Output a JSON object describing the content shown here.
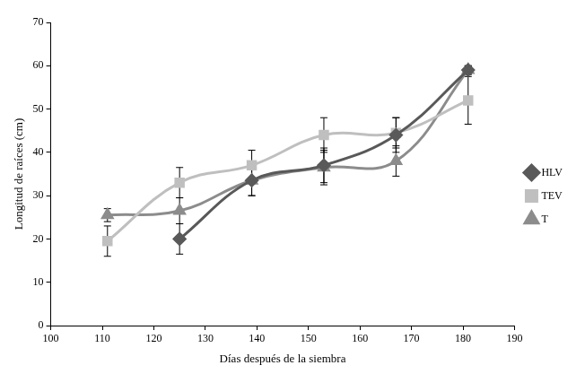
{
  "chart_data": {
    "type": "line",
    "x_label": "Días después de la siembra",
    "y_label": "Longitud de raíces (cm)",
    "x": [
      111,
      125,
      139,
      153,
      167,
      181
    ],
    "series": [
      {
        "name": "HLV",
        "color": "#595959",
        "marker": "diamond",
        "line_style": "solid",
        "values": [
          null,
          20,
          33.5,
          37,
          44,
          59
        ],
        "errors": [
          null,
          3.5,
          3.5,
          4,
          4,
          1
        ]
      },
      {
        "name": "TEV",
        "color": "#bfbfbf",
        "marker": "square",
        "line_style": "solid",
        "values": [
          19.5,
          33,
          37,
          44,
          44.5,
          52
        ],
        "errors": [
          3.5,
          3.5,
          3.5,
          4,
          3.5,
          5.5
        ]
      },
      {
        "name": "T",
        "color": "#8c8c8c",
        "marker": "triangle",
        "line_style": "solid",
        "values": [
          25.5,
          26.5,
          33.5,
          36.5,
          38,
          59
        ],
        "errors": [
          1.5,
          3,
          3.5,
          4,
          3.5,
          1
        ]
      }
    ],
    "xlim": [
      100,
      190
    ],
    "xticks": [
      100,
      110,
      120,
      130,
      140,
      150,
      160,
      170,
      180,
      190
    ],
    "ylim": [
      0,
      70
    ],
    "yticks": [
      0,
      10,
      20,
      30,
      40,
      50,
      60,
      70
    ],
    "grid": false,
    "legend": "right"
  }
}
